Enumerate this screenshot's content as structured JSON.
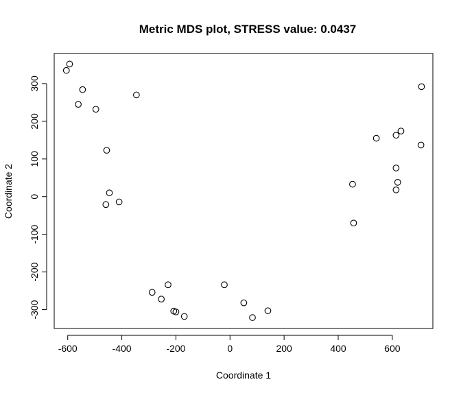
{
  "chart_data": {
    "type": "scatter",
    "title": "Metric MDS plot, STRESS value:  0.0437",
    "xlabel": "Coordinate 1",
    "ylabel": "Coordinate 2",
    "xlim": [
      -650,
      750
    ],
    "ylim": [
      -350,
      380
    ],
    "xticks": [
      -600,
      -400,
      -200,
      0,
      200,
      400,
      600
    ],
    "yticks": [
      -300,
      -200,
      -100,
      0,
      100,
      200,
      300
    ],
    "grid": false,
    "marker": "open-circle",
    "points": [
      {
        "x": -605,
        "y": 335
      },
      {
        "x": -593,
        "y": 352
      },
      {
        "x": -545,
        "y": 284
      },
      {
        "x": -561,
        "y": 245
      },
      {
        "x": -496,
        "y": 232
      },
      {
        "x": -346,
        "y": 270
      },
      {
        "x": -456,
        "y": 123
      },
      {
        "x": -446,
        "y": 10
      },
      {
        "x": -459,
        "y": -21
      },
      {
        "x": -410,
        "y": -14
      },
      {
        "x": -288,
        "y": -254
      },
      {
        "x": -254,
        "y": -272
      },
      {
        "x": -229,
        "y": -234
      },
      {
        "x": -208,
        "y": -304
      },
      {
        "x": -200,
        "y": -306
      },
      {
        "x": -169,
        "y": -318
      },
      {
        "x": -21,
        "y": -234
      },
      {
        "x": 51,
        "y": -282
      },
      {
        "x": 83,
        "y": -321
      },
      {
        "x": 140,
        "y": -303
      },
      {
        "x": 453,
        "y": 33
      },
      {
        "x": 457,
        "y": -70
      },
      {
        "x": 541,
        "y": 155
      },
      {
        "x": 614,
        "y": 163
      },
      {
        "x": 632,
        "y": 174
      },
      {
        "x": 614,
        "y": 76
      },
      {
        "x": 620,
        "y": 38
      },
      {
        "x": 614,
        "y": 18
      },
      {
        "x": 706,
        "y": 137
      },
      {
        "x": 708,
        "y": 292
      }
    ]
  }
}
